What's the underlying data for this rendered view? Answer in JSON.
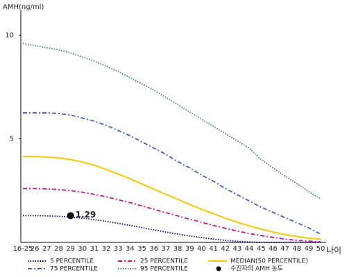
{
  "chart_data": {
    "type": "line",
    "y_label": "AMH(ng/ml)",
    "x_label": "나이",
    "categories": [
      "16-25",
      "26",
      "27",
      "28",
      "29",
      "30",
      "31",
      "32",
      "33",
      "34",
      "35",
      "36",
      "37",
      "38",
      "39",
      "40",
      "41",
      "42",
      "43",
      "44",
      "45",
      "46",
      "47",
      "48",
      "49",
      "50"
    ],
    "ylim": [
      0,
      11.2
    ],
    "yticks": [
      5,
      10
    ],
    "series": [
      {
        "name": "5 PERCENTILE",
        "color": "#000080",
        "dash": "dotted",
        "values": [
          1.29,
          1.29,
          1.28,
          1.26,
          1.22,
          1.17,
          1.1,
          1.02,
          0.92,
          0.82,
          0.71,
          0.6,
          0.5,
          0.4,
          0.31,
          0.23,
          0.16,
          0.1,
          0.05,
          0.02,
          0,
          0,
          0,
          0,
          0,
          0
        ]
      },
      {
        "name": "25 PERCENTILE",
        "color": "#d0108a",
        "dash": "dashdot",
        "values": [
          2.6,
          2.6,
          2.58,
          2.55,
          2.5,
          2.42,
          2.32,
          2.2,
          2.06,
          1.92,
          1.76,
          1.6,
          1.44,
          1.28,
          1.12,
          0.97,
          0.82,
          0.68,
          0.55,
          0.43,
          0.33,
          0.24,
          0.16,
          0.1,
          0.06,
          0.03
        ]
      },
      {
        "name": "MEDIAN(50 PERCENTILE)",
        "color": "#f5c800",
        "dash": "solid",
        "values": [
          4.15,
          4.15,
          4.12,
          4.08,
          4.0,
          3.88,
          3.72,
          3.52,
          3.3,
          3.07,
          2.82,
          2.57,
          2.32,
          2.08,
          1.83,
          1.6,
          1.38,
          1.17,
          0.97,
          0.8,
          0.64,
          0.5,
          0.38,
          0.28,
          0.2,
          0.15
        ]
      },
      {
        "name": "75 PERCENTILE",
        "color": "#3a5fcd",
        "dash": "dashdot",
        "values": [
          6.25,
          6.25,
          6.25,
          6.22,
          6.15,
          6.0,
          5.85,
          5.65,
          5.4,
          5.15,
          4.85,
          4.55,
          4.25,
          3.9,
          3.6,
          3.25,
          2.95,
          2.6,
          2.3,
          2.0,
          1.7,
          1.45,
          1.2,
          0.95,
          0.7,
          0.4
        ]
      },
      {
        "name": "95 PERCENTILE",
        "color": "#2e8b57",
        "dash": "dotted",
        "values": [
          9.6,
          9.5,
          9.4,
          9.3,
          9.15,
          8.95,
          8.75,
          8.5,
          8.25,
          7.95,
          7.65,
          7.35,
          7.0,
          6.65,
          6.3,
          5.95,
          5.6,
          5.25,
          4.9,
          4.55,
          4.0,
          3.6,
          3.2,
          2.85,
          2.45,
          2.1
        ]
      },
      {
        "name": "수진자의 AMH 농도",
        "color": "#000000",
        "marker": "circle",
        "values": [
          null,
          null,
          null,
          null,
          1.29,
          null,
          null,
          null,
          null,
          null,
          null,
          null,
          null,
          null,
          null,
          null,
          null,
          null,
          null,
          null,
          null,
          null,
          null,
          null,
          null,
          null
        ]
      }
    ]
  }
}
